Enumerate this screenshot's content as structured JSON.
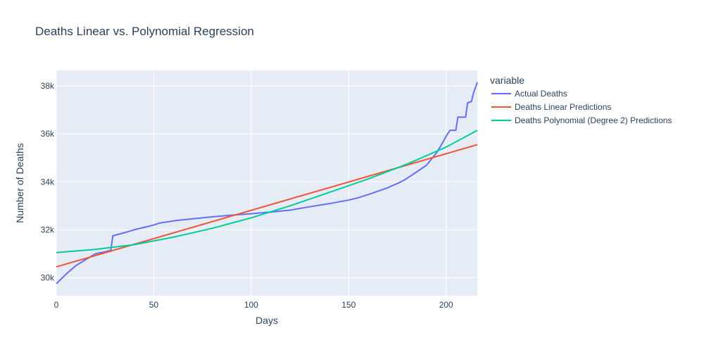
{
  "chart_data": {
    "type": "line",
    "title": "Deaths Linear vs. Polynomial Regression",
    "xlabel": "Days",
    "ylabel": "Number of Deaths",
    "xlim": [
      0,
      216
    ],
    "ylim": [
      29250,
      38650
    ],
    "xticks": [
      0,
      50,
      100,
      150,
      200
    ],
    "xtick_labels": [
      "0",
      "50",
      "100",
      "150",
      "200"
    ],
    "yticks": [
      30000,
      32000,
      34000,
      36000,
      38000
    ],
    "ytick_labels": [
      "30k",
      "32k",
      "34k",
      "36k",
      "38k"
    ],
    "grid": true,
    "legend_title": "variable",
    "legend_position": "right",
    "plot_bgcolor": "#e5ecf6",
    "series": [
      {
        "name": "Actual Deaths",
        "color": "#636efa",
        "x": [
          0,
          5,
          10,
          15,
          20,
          25,
          28,
          29,
          35,
          40,
          45,
          50,
          53,
          60,
          70,
          80,
          90,
          100,
          110,
          120,
          130,
          140,
          150,
          155,
          160,
          165,
          170,
          172,
          175,
          178,
          180,
          185,
          190,
          195,
          198,
          200,
          202,
          205,
          206,
          210,
          211,
          213,
          214,
          216
        ],
        "y": [
          29750,
          30150,
          30500,
          30750,
          31000,
          31080,
          31150,
          31750,
          31880,
          32000,
          32100,
          32200,
          32280,
          32370,
          32460,
          32540,
          32610,
          32670,
          32740,
          32820,
          32960,
          33090,
          33240,
          33340,
          33470,
          33610,
          33750,
          33830,
          33930,
          34050,
          34150,
          34420,
          34700,
          35200,
          35600,
          35900,
          36150,
          36150,
          36700,
          36700,
          37300,
          37350,
          37700,
          38150
        ]
      },
      {
        "name": "Deaths Linear Predictions",
        "color": "#ef553b",
        "x": [
          0,
          216
        ],
        "y": [
          30450,
          35550
        ]
      },
      {
        "name": "Deaths Polynomial (Degree 2) Predictions",
        "color": "#00cc96",
        "x": [
          0,
          20,
          40,
          60,
          80,
          100,
          120,
          140,
          160,
          180,
          200,
          216
        ],
        "y": [
          31050,
          31180,
          31380,
          31690,
          32060,
          32500,
          33000,
          33560,
          34120,
          34740,
          35450,
          36150
        ]
      }
    ]
  }
}
